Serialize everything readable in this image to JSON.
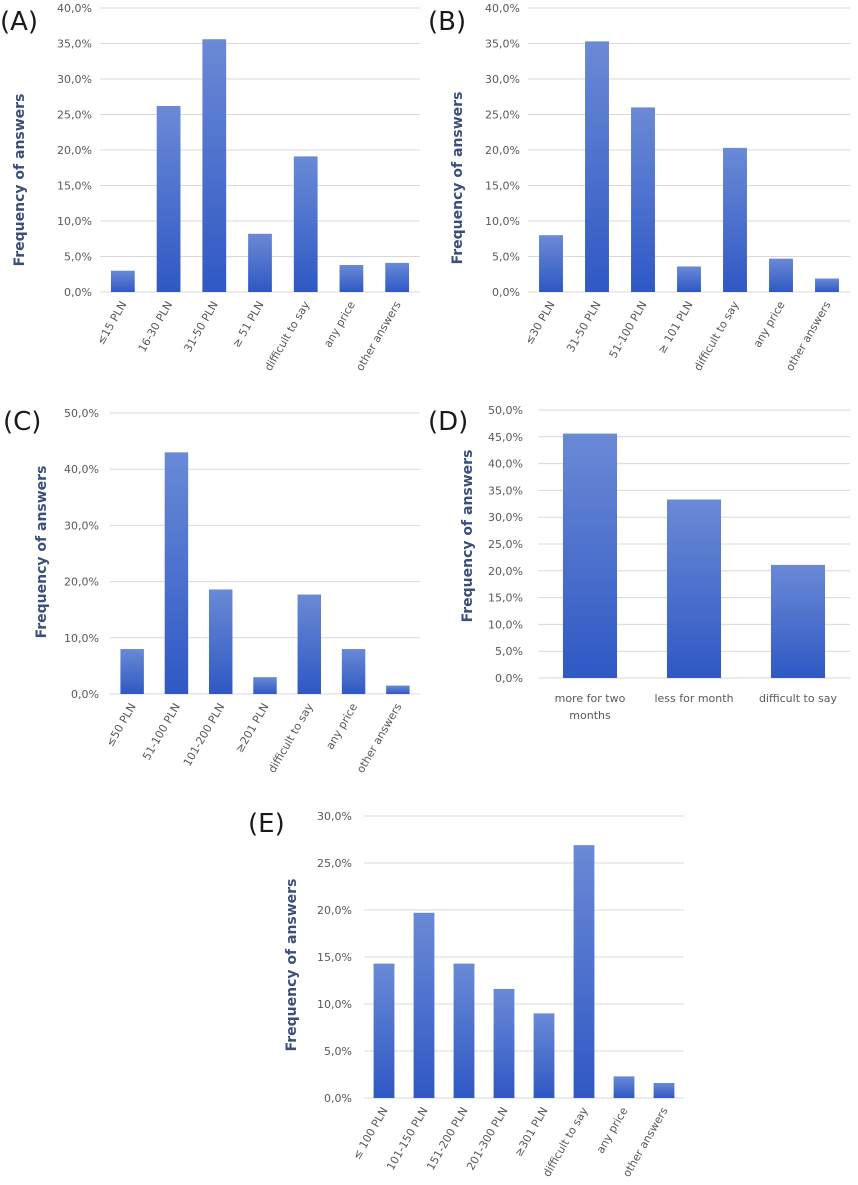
{
  "colors": {
    "bar_top": "#6a8ad6",
    "bar_bottom": "#2f58c4",
    "grid": "#d9d9d9",
    "text": "#595959",
    "ylabel": "#3a4f7a"
  },
  "chart_data": [
    {
      "type": "bar",
      "panel": "(A)",
      "categories": [
        "≤15 PLN",
        "16-30 PLN",
        "31-50 PLN",
        "≥ 51 PLN",
        "difficult to say",
        "any price",
        "other answers"
      ],
      "values": [
        3.0,
        26.2,
        35.6,
        8.2,
        19.1,
        3.8,
        4.1
      ],
      "ylabel": "Frequency of answers",
      "ylim": [
        0,
        40
      ],
      "yticks": [
        "0,0%",
        "5,0%",
        "10,0%",
        "15,0%",
        "20,0%",
        "25,0%",
        "30,0%",
        "35,0%",
        "40,0%"
      ],
      "label_rotation": "rotated"
    },
    {
      "type": "bar",
      "panel": "(B)",
      "categories": [
        "≤30 PLN",
        "31-50 PLN",
        "51-100 PLN",
        "≥ 101 PLN",
        "difficult to say",
        "any price",
        "other answers"
      ],
      "values": [
        8.0,
        35.3,
        26.0,
        3.6,
        20.3,
        4.7,
        1.9
      ],
      "ylabel": "Frequency of answers",
      "ylim": [
        0,
        40
      ],
      "yticks": [
        "0,0%",
        "5,0%",
        "10,0%",
        "15,0%",
        "20,0%",
        "25,0%",
        "30,0%",
        "35,0%",
        "40,0%"
      ],
      "label_rotation": "rotated"
    },
    {
      "type": "bar",
      "panel": "(C)",
      "categories": [
        "≤50 PLN",
        "51-100 PLN",
        "101-200 PLN",
        "≥201 PLN",
        "difficult to say",
        "any price",
        "other answers"
      ],
      "values": [
        8.0,
        43.0,
        18.6,
        3.0,
        17.7,
        8.0,
        1.5
      ],
      "ylabel": "Frequency of answers",
      "ylim": [
        0,
        50
      ],
      "yticks": [
        "0,0%",
        "10,0%",
        "20,0%",
        "30,0%",
        "40,0%",
        "50,0%"
      ],
      "label_rotation": "rotated"
    },
    {
      "type": "bar",
      "panel": "(D)",
      "categories": [
        "more for two months",
        "less for month",
        "difficult to say"
      ],
      "category_lines": [
        [
          "more for two",
          "months"
        ],
        [
          "less for month"
        ],
        [
          "difficult to say"
        ]
      ],
      "values": [
        45.6,
        33.3,
        21.1
      ],
      "ylabel": "Frequency of answers",
      "ylim": [
        0,
        50
      ],
      "yticks": [
        "0,0%",
        "5,0%",
        "10,0%",
        "15,0%",
        "20,0%",
        "25,0%",
        "30,0%",
        "35,0%",
        "40,0%",
        "45,0%",
        "50,0%"
      ],
      "label_rotation": "horizontal"
    },
    {
      "type": "bar",
      "panel": "(E)",
      "categories": [
        "≤ 100 PLN",
        "101-150 PLN",
        "151-200 PLN",
        "201-300 PLN",
        "≥301 PLN",
        "difficult to say",
        "any price",
        "other answers"
      ],
      "values": [
        14.3,
        19.7,
        14.3,
        11.6,
        9.0,
        26.9,
        2.3,
        1.6
      ],
      "ylabel": "Frequency of answers",
      "ylim": [
        0,
        30
      ],
      "yticks": [
        "0,0%",
        "5,0%",
        "10,0%",
        "15,0%",
        "20,0%",
        "25,0%",
        "30,0%"
      ],
      "label_rotation": "rotated"
    }
  ]
}
